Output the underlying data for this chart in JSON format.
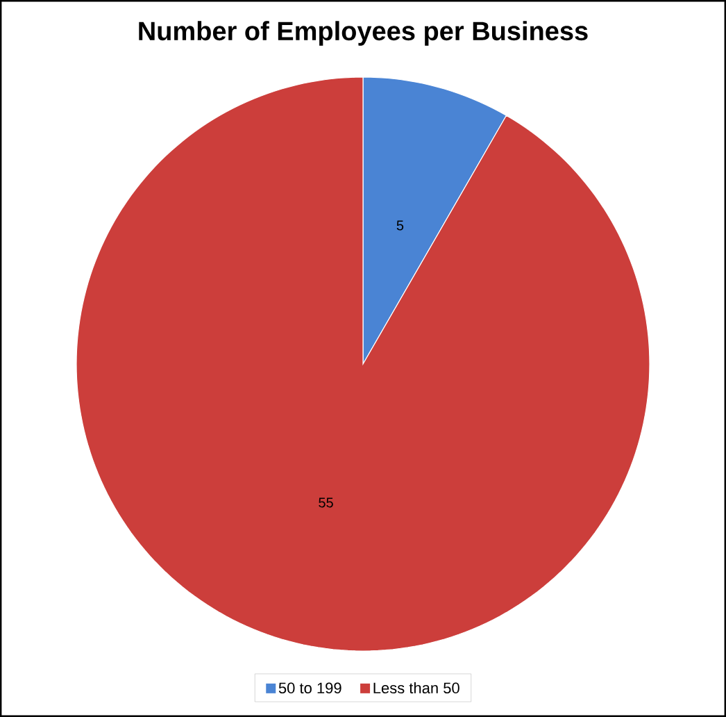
{
  "chart_data": {
    "type": "pie",
    "title": "Number of Employees per Business",
    "categories": [
      "50 to 199",
      "Less than 50"
    ],
    "values": [
      5,
      55
    ],
    "colors": [
      "#4a84d4",
      "#cc3e3b"
    ],
    "data_labels": true,
    "legend": "bottom"
  }
}
